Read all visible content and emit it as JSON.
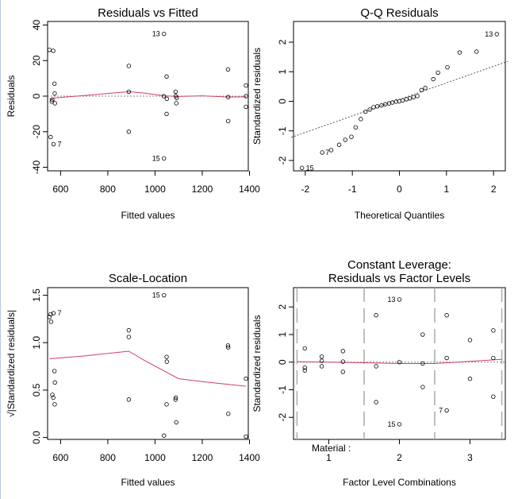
{
  "chart_data": [
    {
      "id": "p1",
      "type": "scatter",
      "title": "Residuals vs Fitted",
      "xlabel": "Fitted values",
      "ylabel": "Residuals",
      "xlim": [
        545,
        1395
      ],
      "ylim": [
        -42,
        42
      ],
      "xticks": [
        600,
        800,
        1000,
        1200,
        1400
      ],
      "yticks": [
        -40,
        -20,
        0,
        20,
        40
      ],
      "points": [
        [
          553,
          26
        ],
        [
          569,
          25.5
        ],
        [
          574,
          7
        ],
        [
          575,
          1.5
        ],
        [
          565,
          -2
        ],
        [
          563,
          -3
        ],
        [
          576,
          -4
        ],
        [
          558,
          -23
        ],
        [
          570,
          -27
        ],
        [
          889,
          17
        ],
        [
          889,
          2.5
        ],
        [
          889,
          -20
        ],
        [
          1038,
          35
        ],
        [
          1038,
          -35
        ],
        [
          1037,
          0
        ],
        [
          1049,
          11
        ],
        [
          1050,
          -1.5
        ],
        [
          1049,
          -10
        ],
        [
          1087,
          2.5
        ],
        [
          1088,
          0
        ],
        [
          1092,
          -1
        ],
        [
          1090,
          -4
        ],
        [
          1309,
          15
        ],
        [
          1310,
          -0.5
        ],
        [
          1310,
          -14
        ],
        [
          1385,
          6
        ],
        [
          1385,
          0
        ],
        [
          1385,
          -6
        ]
      ],
      "point_labels": [
        {
          "x": 1038,
          "y": 35,
          "text": "13"
        },
        {
          "x": 570,
          "y": -27,
          "text": "7"
        },
        {
          "x": 1038,
          "y": -35,
          "text": "15"
        }
      ],
      "smooth": [
        [
          553,
          -1.5
        ],
        [
          575,
          -1
        ],
        [
          700,
          0.3
        ],
        [
          800,
          1.5
        ],
        [
          889,
          2.5
        ],
        [
          950,
          1.8
        ],
        [
          1040,
          0.2
        ],
        [
          1100,
          -0.2
        ],
        [
          1200,
          0.2
        ],
        [
          1310,
          -0.5
        ],
        [
          1385,
          -0.4
        ]
      ]
    },
    {
      "id": "p2",
      "type": "scatter",
      "title": "Q-Q Residuals",
      "xlabel": "Theoretical Quantiles",
      "ylabel": "Standardized residuals",
      "xlim": [
        -2.25,
        2.25
      ],
      "ylim": [
        -2.35,
        2.7
      ],
      "xticks": [
        -2,
        -1,
        0,
        1,
        2
      ],
      "yticks": [
        -2,
        -1,
        0,
        1,
        2
      ],
      "points": [
        [
          -2.07,
          -2.25
        ],
        [
          -1.64,
          -1.73
        ],
        [
          -1.45,
          -1.65
        ],
        [
          -1.28,
          -1.47
        ],
        [
          -1.15,
          -1.3
        ],
        [
          -1.02,
          -1.2
        ],
        [
          -0.93,
          -0.88
        ],
        [
          -0.82,
          -0.6
        ],
        [
          -0.72,
          -0.35
        ],
        [
          -0.63,
          -0.28
        ],
        [
          -0.55,
          -0.2
        ],
        [
          -0.47,
          -0.17
        ],
        [
          -0.38,
          -0.14
        ],
        [
          -0.3,
          -0.1
        ],
        [
          -0.22,
          -0.07
        ],
        [
          -0.15,
          -0.04
        ],
        [
          -0.07,
          -0.01
        ],
        [
          0.0,
          0.0
        ],
        [
          0.07,
          0.03
        ],
        [
          0.15,
          0.07
        ],
        [
          0.22,
          0.1
        ],
        [
          0.3,
          0.14
        ],
        [
          0.38,
          0.18
        ],
        [
          0.47,
          0.38
        ],
        [
          0.55,
          0.45
        ],
        [
          0.72,
          0.75
        ],
        [
          0.82,
          0.97
        ],
        [
          1.02,
          1.15
        ],
        [
          1.28,
          1.65
        ],
        [
          1.64,
          1.68
        ],
        [
          2.07,
          2.27
        ]
      ],
      "point_labels": [
        {
          "x": 2.07,
          "y": 2.27,
          "text": "13"
        },
        {
          "x": -2.07,
          "y": -2.25,
          "text": "15"
        },
        {
          "x": -1.64,
          "y": -1.73,
          "text": "7"
        }
      ],
      "ref_line": [
        [
          -2.3,
          -1.22
        ],
        [
          2.3,
          1.35
        ]
      ]
    },
    {
      "id": "p3",
      "type": "scatter",
      "title": "Scale-Location",
      "xlabel": "Fitted values",
      "ylabel": "√|Standardized residuals|",
      "xlim": [
        545,
        1395
      ],
      "ylim": [
        -0.02,
        1.58
      ],
      "xticks": [
        600,
        800,
        1000,
        1200,
        1400
      ],
      "yticks": [
        0.0,
        0.5,
        1.0,
        1.5
      ],
      "points": [
        [
          553,
          1.27
        ],
        [
          560,
          1.22
        ],
        [
          558,
          1.3
        ],
        [
          570,
          1.31
        ],
        [
          574,
          0.7
        ],
        [
          576,
          0.58
        ],
        [
          565,
          0.45
        ],
        [
          569,
          0.42
        ],
        [
          575,
          0.35
        ],
        [
          889,
          1.13
        ],
        [
          889,
          1.06
        ],
        [
          889,
          0.4
        ],
        [
          1038,
          1.5
        ],
        [
          1038,
          0.02
        ],
        [
          1049,
          0.85
        ],
        [
          1050,
          0.8
        ],
        [
          1049,
          0.35
        ],
        [
          1087,
          0.4
        ],
        [
          1088,
          0.42
        ],
        [
          1090,
          0.16
        ],
        [
          1309,
          0.97
        ],
        [
          1310,
          0.95
        ],
        [
          1310,
          0.25
        ],
        [
          1385,
          0.62
        ],
        [
          1385,
          0.01
        ]
      ],
      "point_labels": [
        {
          "x": 570,
          "y": 1.31,
          "text": "7"
        },
        {
          "x": 1038,
          "y": 1.5,
          "text": "15"
        }
      ],
      "smooth": [
        [
          553,
          0.83
        ],
        [
          700,
          0.86
        ],
        [
          889,
          0.91
        ],
        [
          950,
          0.82
        ],
        [
          1040,
          0.7
        ],
        [
          1100,
          0.62
        ],
        [
          1200,
          0.59
        ],
        [
          1310,
          0.56
        ],
        [
          1385,
          0.54
        ]
      ]
    },
    {
      "id": "p4",
      "type": "scatter",
      "title": "Constant Leverage:",
      "title2": "Residuals vs Factor Levels",
      "xlabel": "Factor Level Combinations",
      "ylabel": "Standardized residuals",
      "factor_label": "Material :",
      "xlim": [
        0.5,
        3.5
      ],
      "ylim": [
        -2.8,
        2.7
      ],
      "xticks": [
        1,
        2,
        3
      ],
      "yticks": [
        -2,
        -1,
        0,
        1,
        2
      ],
      "xtick_positions": [
        1,
        2,
        3
      ],
      "dividers": [
        0.55,
        1.5,
        2.5,
        3.45
      ],
      "points": [
        [
          0.66,
          0.5
        ],
        [
          0.66,
          -0.2
        ],
        [
          0.66,
          -0.3
        ],
        [
          0.9,
          0.2
        ],
        [
          0.9,
          0.05
        ],
        [
          0.9,
          -0.15
        ],
        [
          1.2,
          0.4
        ],
        [
          1.2,
          0.02
        ],
        [
          1.2,
          -0.35
        ],
        [
          1.67,
          1.7
        ],
        [
          1.67,
          -0.15
        ],
        [
          1.67,
          -1.45
        ],
        [
          2.0,
          2.27
        ],
        [
          2.0,
          0.0
        ],
        [
          2.0,
          -2.25
        ],
        [
          2.33,
          1.0
        ],
        [
          2.33,
          -0.05
        ],
        [
          2.33,
          -0.9
        ],
        [
          2.67,
          1.7
        ],
        [
          2.67,
          0.15
        ],
        [
          2.67,
          -1.75
        ],
        [
          3.0,
          0.8
        ],
        [
          3.0,
          -0.6
        ],
        [
          3.33,
          1.15
        ],
        [
          3.33,
          0.15
        ],
        [
          3.33,
          -1.25
        ]
      ],
      "point_labels": [
        {
          "x": 2.0,
          "y": 2.27,
          "text": "13"
        },
        {
          "x": 2.67,
          "y": -1.75,
          "text": "7"
        },
        {
          "x": 2.0,
          "y": -2.25,
          "text": "15"
        }
      ],
      "smooth": [
        [
          0.55,
          0.02
        ],
        [
          1.0,
          0.0
        ],
        [
          1.5,
          -0.02
        ],
        [
          2.0,
          -0.05
        ],
        [
          2.5,
          -0.05
        ],
        [
          3.0,
          0.03
        ],
        [
          3.45,
          0.1
        ]
      ]
    }
  ]
}
